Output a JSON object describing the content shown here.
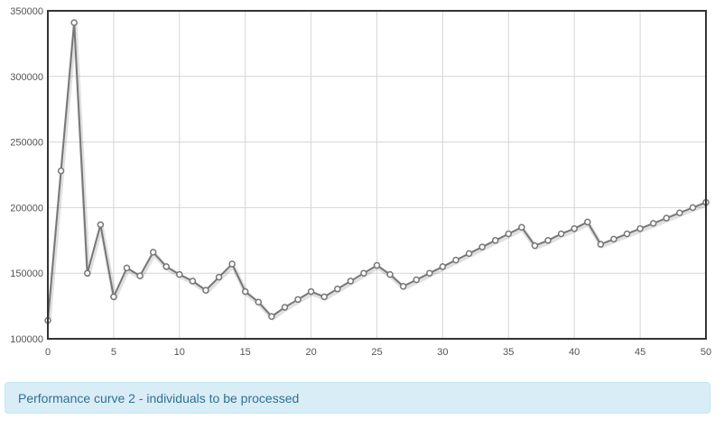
{
  "chart_data": {
    "type": "line",
    "title": "",
    "xlabel": "",
    "ylabel": "",
    "xlim": [
      0,
      50
    ],
    "ylim": [
      100000,
      350000
    ],
    "xticks": [
      0,
      5,
      10,
      15,
      20,
      25,
      30,
      35,
      40,
      45,
      50
    ],
    "yticks": [
      100000,
      150000,
      200000,
      250000,
      300000,
      350000
    ],
    "x_tick_labels": [
      "0",
      "5",
      "10",
      "15",
      "20",
      "25",
      "30",
      "35",
      "40",
      "45",
      "50"
    ],
    "y_tick_labels": [
      "100000",
      "150000",
      "200000",
      "250000",
      "300000",
      "350000"
    ],
    "grid": true,
    "legend": "none",
    "line_color": "#777777",
    "marker_fill": "#ffffff",
    "series": [
      {
        "x": [
          0,
          1,
          2,
          3,
          4,
          5,
          6,
          7,
          8,
          9,
          10,
          11,
          12,
          13,
          14,
          15,
          16,
          17,
          18,
          19,
          20,
          21,
          22,
          23,
          24,
          25,
          26,
          27,
          28,
          29,
          30,
          31,
          32,
          33,
          34,
          35,
          36,
          37,
          38,
          39,
          40,
          41,
          42,
          43,
          44,
          45,
          46,
          47,
          48,
          49,
          50
        ],
        "values": [
          114000,
          228000,
          341000,
          150000,
          187000,
          132000,
          154000,
          148000,
          166000,
          155000,
          149000,
          144000,
          137000,
          147000,
          157000,
          136000,
          128000,
          117000,
          124000,
          130000,
          136000,
          132000,
          138000,
          144000,
          150000,
          156000,
          149000,
          140000,
          145000,
          150000,
          155000,
          160000,
          165000,
          170000,
          175000,
          180000,
          185000,
          171000,
          175000,
          180000,
          184000,
          189000,
          172000,
          176000,
          180000,
          184000,
          188000,
          192000,
          196000,
          200000,
          204000
        ]
      }
    ]
  },
  "caption": {
    "text": "Performance curve 2 - individuals to be processed"
  }
}
